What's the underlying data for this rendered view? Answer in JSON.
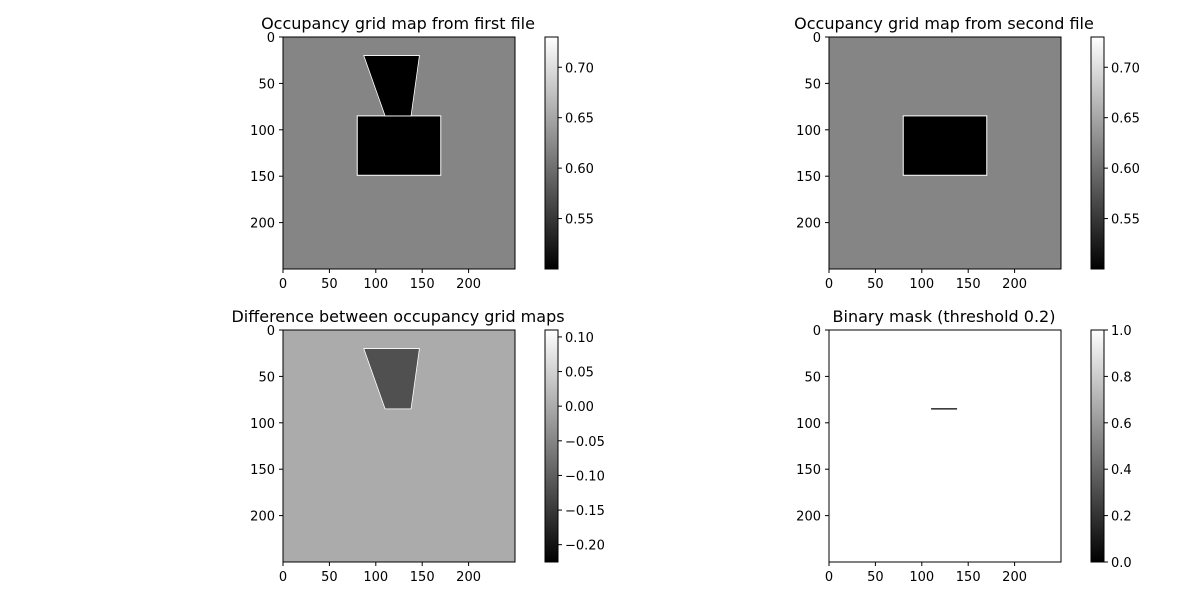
{
  "chart_data": [
    {
      "type": "heatmap",
      "title": "Occupancy grid map from first file",
      "colormap": "gray",
      "xlim": [
        0,
        250
      ],
      "ylim": [
        250,
        0
      ],
      "x_ticks": [
        "0",
        "50",
        "100",
        "150",
        "200"
      ],
      "y_ticks": [
        "0",
        "50",
        "100",
        "150",
        "200"
      ],
      "background_value": 0.62,
      "shapes": [
        {
          "kind": "rect",
          "x": [
            80,
            170
          ],
          "y": [
            85,
            149
          ],
          "value": 0.5
        },
        {
          "kind": "trapezoid",
          "top_x": [
            87,
            147
          ],
          "bottom_x": [
            110,
            138
          ],
          "y": [
            20,
            85
          ],
          "value": 0.5
        }
      ],
      "colorbar": {
        "min": 0.5,
        "max": 0.73,
        "ticks": [
          "0.55",
          "0.60",
          "0.65",
          "0.70"
        ],
        "tick_values": [
          0.55,
          0.6,
          0.65,
          0.7
        ]
      }
    },
    {
      "type": "heatmap",
      "title": "Occupancy grid map from  second file",
      "colormap": "gray",
      "xlim": [
        0,
        250
      ],
      "ylim": [
        250,
        0
      ],
      "x_ticks": [
        "0",
        "50",
        "100",
        "150",
        "200"
      ],
      "y_ticks": [
        "0",
        "50",
        "100",
        "150",
        "200"
      ],
      "background_value": 0.62,
      "shapes": [
        {
          "kind": "rect",
          "x": [
            80,
            170
          ],
          "y": [
            85,
            149
          ],
          "value": 0.5
        }
      ],
      "colorbar": {
        "min": 0.5,
        "max": 0.73,
        "ticks": [
          "0.55",
          "0.60",
          "0.65",
          "0.70"
        ],
        "tick_values": [
          0.55,
          0.6,
          0.65,
          0.7
        ]
      }
    },
    {
      "type": "heatmap",
      "title": "Difference between occupancy grid maps",
      "colormap": "gray",
      "xlim": [
        0,
        250
      ],
      "ylim": [
        250,
        0
      ],
      "x_ticks": [
        "0",
        "50",
        "100",
        "150",
        "200"
      ],
      "y_ticks": [
        "0",
        "50",
        "100",
        "150",
        "200"
      ],
      "background_value": 0.0,
      "shapes": [
        {
          "kind": "trapezoid",
          "top_x": [
            87,
            147
          ],
          "bottom_x": [
            110,
            138
          ],
          "y": [
            20,
            85
          ],
          "value": -0.12
        }
      ],
      "colorbar": {
        "min": -0.225,
        "max": 0.11,
        "ticks": [
          "0.10",
          "0.05",
          "0.00",
          "−0.05",
          "−0.10",
          "−0.15",
          "−0.20"
        ],
        "tick_values": [
          0.1,
          0.05,
          0.0,
          -0.05,
          -0.1,
          -0.15,
          -0.2
        ]
      }
    },
    {
      "type": "heatmap",
      "title": "Binary mask (threshold 0.2)",
      "colormap": "gray",
      "xlim": [
        0,
        250
      ],
      "ylim": [
        250,
        0
      ],
      "x_ticks": [
        "0",
        "50",
        "100",
        "150",
        "200"
      ],
      "y_ticks": [
        "0",
        "50",
        "100",
        "150",
        "200"
      ],
      "background_value": 1.0,
      "shapes": [
        {
          "kind": "line",
          "x": [
            110,
            138
          ],
          "y": [
            85,
            85
          ],
          "value": 0.0
        }
      ],
      "colorbar": {
        "min": 0.0,
        "max": 1.0,
        "ticks": [
          "0.0",
          "0.2",
          "0.4",
          "0.6",
          "0.8",
          "1.0"
        ],
        "tick_values": [
          0.0,
          0.2,
          0.4,
          0.6,
          0.8,
          1.0
        ]
      }
    }
  ]
}
